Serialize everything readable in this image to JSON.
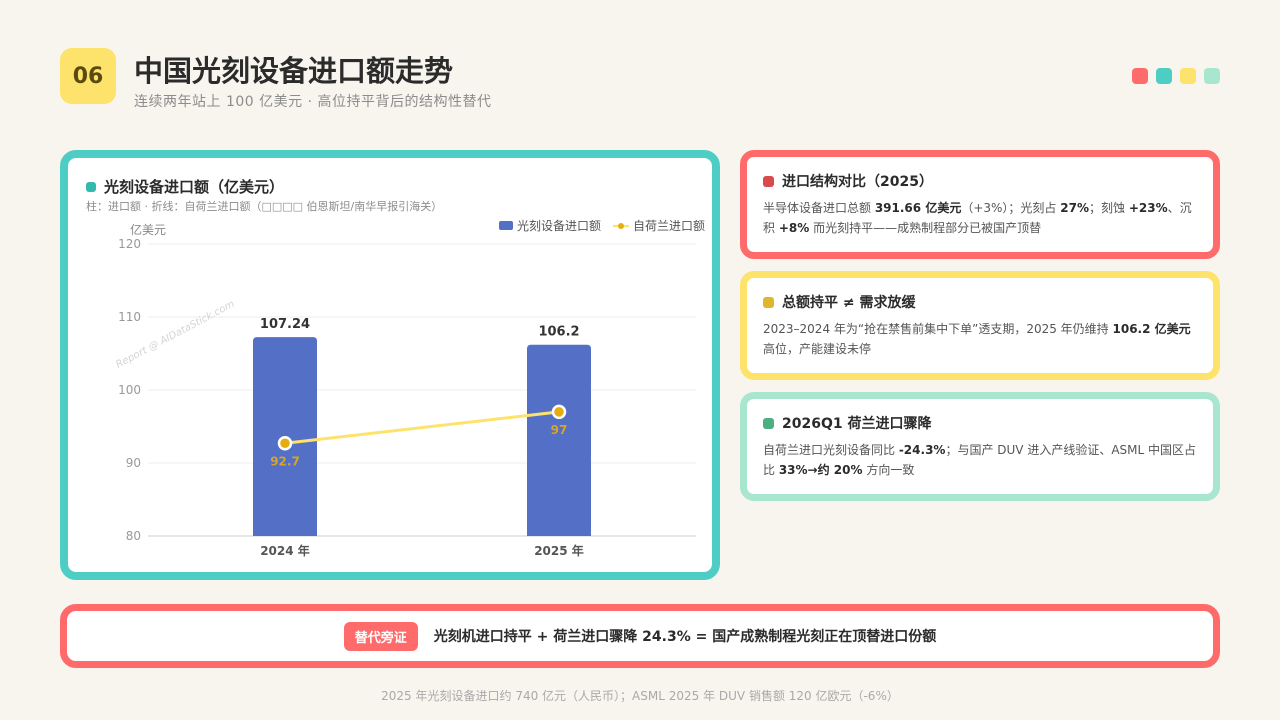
{
  "header": {
    "number": "06",
    "title": "中国光刻设备进口额走势",
    "subtitle": "连续两年站上 100 亿美元 · 高位持平背后的结构性替代"
  },
  "decor_colors": [
    "#ff6b6b",
    "#4ecdc4",
    "#fde36b",
    "#a8e6cf"
  ],
  "chart_card": {
    "title": "光刻设备进口额（亿美元）",
    "subtitle": "柱：进口额 · 折线：自荷兰进口额（□□□□ 伯恩斯坦/南华早报引海关）",
    "watermark": "Report @ AIDataStick.com"
  },
  "chart_data": {
    "type": "bar",
    "categories": [
      "2024 年",
      "2025 年"
    ],
    "ylabel": "亿美元",
    "ylim": [
      80,
      120
    ],
    "yticks": [
      80,
      90,
      100,
      110,
      120
    ],
    "grid": true,
    "legend_position": "top-right",
    "series": [
      {
        "name": "光刻设备进口额",
        "type": "bar",
        "values": [
          107.24,
          106.2
        ],
        "labels": [
          "107.24",
          "106.2"
        ],
        "color": "#5470c6"
      },
      {
        "name": "自荷兰进口额",
        "type": "line",
        "values": [
          92.7,
          97
        ],
        "labels": [
          "92.7",
          "97"
        ],
        "color": "#fde36b"
      }
    ]
  },
  "cards": [
    {
      "title": "进口结构对比（2025）",
      "color": "#ff6b6b",
      "square": "#d94a4a",
      "body": [
        {
          "t": "半导体设备进口总额 "
        },
        {
          "t": "391.66 亿美元",
          "b": true
        },
        {
          "t": "（+3%）；光刻占 "
        },
        {
          "t": "27%",
          "b": true
        },
        {
          "t": "；刻蚀 "
        },
        {
          "t": "+23%",
          "b": true
        },
        {
          "t": "、沉积 "
        },
        {
          "t": "+8%",
          "b": true
        },
        {
          "t": " 而光刻持平——成熟制程部分已被国产顶替"
        }
      ]
    },
    {
      "title": "总额持平 ≠ 需求放缓",
      "color": "#fde36b",
      "square": "#e0b530",
      "body": [
        {
          "t": "2023–2024 年为“抢在禁售前集中下单”透支期，2025 年仍维持 "
        },
        {
          "t": "106.2 亿美元",
          "b": true
        },
        {
          "t": "高位，产能建设未停"
        }
      ]
    },
    {
      "title": "2026Q1 荷兰进口骤降",
      "color": "#a8e6cf",
      "square": "#4caf82",
      "body": [
        {
          "t": "自荷兰进口光刻设备同比 "
        },
        {
          "t": "-24.3%",
          "b": true
        },
        {
          "t": "；与国产 DUV 进入产线验证、ASML 中国区占比 "
        },
        {
          "t": "33%→约 20%",
          "b": true
        },
        {
          "t": " 方向一致"
        }
      ]
    }
  ],
  "bottom": {
    "tag": "替代旁证",
    "text": "光刻机进口持平 + 荷兰进口骤降 24.3% = 国产成熟制程光刻正在顶替进口份额"
  },
  "footer": "2025 年光刻设备进口约 740 亿元（人民币）；ASML 2025 年 DUV 销售额 120 亿欧元（-6%）"
}
